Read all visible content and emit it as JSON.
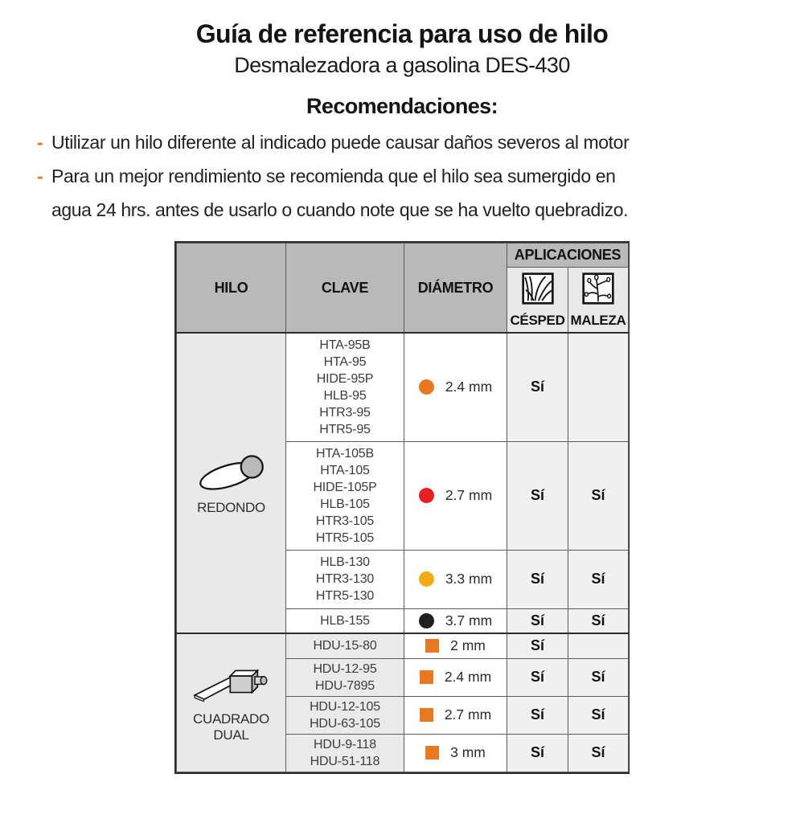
{
  "header": {
    "title": "Guía de referencia para uso de hilo",
    "subtitle": "Desmalezadora a gasolina DES-430"
  },
  "recommendations": {
    "heading": "Recomendaciones:",
    "dash": "-",
    "items": [
      {
        "lines": [
          "Utilizar un hilo diferente al indicado puede causar daños severos al motor"
        ]
      },
      {
        "lines": [
          "Para un mejor rendimiento se recomienda que el hilo sea sumergido en",
          "agua 24 hrs. antes de usarlo o cuando note que se ha vuelto quebradizo."
        ]
      }
    ]
  },
  "table": {
    "headers": {
      "hilo": "HILO",
      "clave": "CLAVE",
      "diametro": "DIÁMETRO",
      "aplicaciones": "APLICACIONES",
      "cesped": "CÉSPED",
      "maleza": "MALEZA"
    },
    "header_icons": {
      "cesped": "grass-icon",
      "maleza": "weed-icon"
    },
    "sections": [
      {
        "name": "REDONDO",
        "icon": "round-line-icon",
        "rows": [
          {
            "claves": [
              "HTA-95B",
              "HTA-95",
              "HIDE-95P",
              "HLB-95",
              "HTR3-95",
              "HTR5-95"
            ],
            "marker_shape": "circle",
            "marker_color": "#E87722",
            "diametro": "2.4 mm",
            "cesped": "Sí",
            "maleza": ""
          },
          {
            "claves": [
              "HTA-105B",
              "HTA-105",
              "HIDE-105P",
              "HLB-105",
              "HTR3-105",
              "HTR5-105"
            ],
            "marker_shape": "circle",
            "marker_color": "#E81E25",
            "diametro": "2.7 mm",
            "cesped": "Sí",
            "maleza": "Sí"
          },
          {
            "claves": [
              "HLB-130",
              "HTR3-130",
              "HTR5-130"
            ],
            "marker_shape": "circle",
            "marker_color": "#F2AC18",
            "diametro": "3.3 mm",
            "cesped": "Sí",
            "maleza": "Sí"
          },
          {
            "claves": [
              "HLB-155"
            ],
            "marker_shape": "circle",
            "marker_color": "#231F20",
            "diametro": "3.7 mm",
            "cesped": "Sí",
            "maleza": "Sí"
          }
        ]
      },
      {
        "name": "CUADRADO DUAL",
        "icon": "square-dual-line-icon",
        "rows": [
          {
            "claves": [
              "HDU-15-80"
            ],
            "marker_shape": "square",
            "marker_color": "#E87722",
            "diametro": "2 mm",
            "cesped": "Sí",
            "maleza": ""
          },
          {
            "claves": [
              "HDU-12-95",
              "HDU-7895"
            ],
            "marker_shape": "square",
            "marker_color": "#E87722",
            "diametro": "2.4 mm",
            "cesped": "Sí",
            "maleza": "Sí"
          },
          {
            "claves": [
              "HDU-12-105",
              "HDU-63-105"
            ],
            "marker_shape": "square",
            "marker_color": "#E87722",
            "diametro": "2.7 mm",
            "cesped": "Sí",
            "maleza": "Sí"
          },
          {
            "claves": [
              "HDU-9-118",
              "HDU-51-118"
            ],
            "marker_shape": "square",
            "marker_color": "#E87722",
            "diametro": "3 mm",
            "cesped": "Sí",
            "maleza": "Sí"
          }
        ]
      }
    ]
  },
  "colors": {
    "accent_orange": "#E87722",
    "marker_red": "#E81E25",
    "marker_yellow": "#F2AC18",
    "marker_black": "#231F20",
    "header_gray": "#B9B9B9",
    "cell_gray": "#F0F0F0"
  }
}
